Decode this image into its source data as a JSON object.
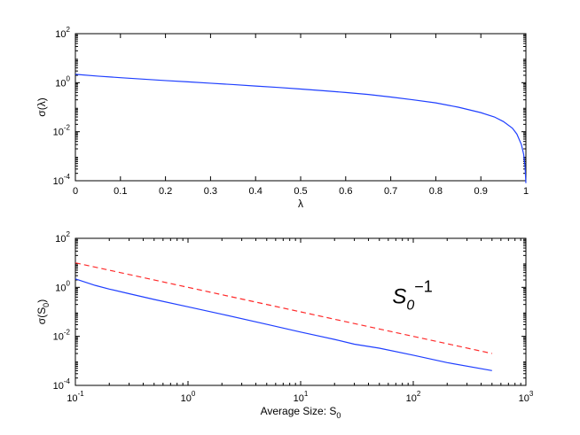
{
  "colors": {
    "solid": "#1f3fff",
    "dashed": "#ff2a2a",
    "axis": "#000000",
    "background": "#ffffff"
  },
  "chart_data": [
    {
      "type": "line",
      "xscale": "linear",
      "yscale": "log",
      "xlim": [
        0,
        1
      ],
      "ylim": [
        0.0001,
        100
      ],
      "xlabel": "λ",
      "ylabel": "σ(λ)",
      "xticks": [
        0,
        0.1,
        0.2,
        0.3,
        0.4,
        0.5,
        0.6,
        0.7,
        0.8,
        0.9,
        1
      ],
      "xtick_labels": [
        "0",
        "0.1",
        "0.2",
        "0.3",
        "0.4",
        "0.5",
        "0.6",
        "0.7",
        "0.8",
        "0.9",
        "1"
      ],
      "yticks": [
        {
          "base": "10",
          "exp": "-4"
        },
        {
          "base": "10",
          "exp": "-2"
        },
        {
          "base": "10",
          "exp": "0"
        },
        {
          "base": "10",
          "exp": "2"
        }
      ],
      "grid": false,
      "series": [
        {
          "style": "solid",
          "color": "#1f3fff",
          "x": [
            0,
            0.05,
            0.1,
            0.15,
            0.2,
            0.25,
            0.3,
            0.35,
            0.4,
            0.45,
            0.5,
            0.55,
            0.6,
            0.65,
            0.7,
            0.75,
            0.8,
            0.85,
            0.9,
            0.93,
            0.95,
            0.97,
            0.98,
            0.99,
            0.995,
            0.998,
            1
          ],
          "y": [
            2.2,
            1.85,
            1.6,
            1.4,
            1.22,
            1.08,
            0.95,
            0.84,
            0.73,
            0.64,
            0.55,
            0.47,
            0.4,
            0.33,
            0.26,
            0.2,
            0.15,
            0.1,
            0.06,
            0.04,
            0.026,
            0.014,
            0.008,
            0.003,
            0.0012,
            0.0004,
            8e-05
          ]
        }
      ]
    },
    {
      "type": "line",
      "xscale": "log",
      "yscale": "log",
      "xlim": [
        0.1,
        1000
      ],
      "ylim": [
        0.0001,
        100
      ],
      "xlabel": {
        "text": "Average Size: S",
        "sub": "0"
      },
      "ylabel": {
        "text": "σ(S",
        "sub": "0",
        "end": ")"
      },
      "xticks": [
        {
          "base": "10",
          "exp": "-1"
        },
        {
          "base": "10",
          "exp": "0"
        },
        {
          "base": "10",
          "exp": "1"
        },
        {
          "base": "10",
          "exp": "2"
        },
        {
          "base": "10",
          "exp": "3"
        }
      ],
      "yticks": [
        {
          "base": "10",
          "exp": "-4"
        },
        {
          "base": "10",
          "exp": "-2"
        },
        {
          "base": "10",
          "exp": "0"
        },
        {
          "base": "10",
          "exp": "2"
        }
      ],
      "grid": false,
      "annotations": [
        {
          "text": "S",
          "sub": "0",
          "sup": "−1",
          "x": 150,
          "y": 0.5
        }
      ],
      "series": [
        {
          "style": "solid",
          "color": "#1f3fff",
          "x": [
            0.1,
            0.15,
            0.2,
            0.3,
            0.5,
            1,
            2,
            5,
            10,
            20,
            30,
            50,
            100,
            200,
            500
          ],
          "y": [
            2.2,
            1.2,
            0.85,
            0.55,
            0.32,
            0.16,
            0.08,
            0.031,
            0.015,
            0.0075,
            0.0048,
            0.0033,
            0.0017,
            0.00085,
            0.0004
          ]
        },
        {
          "style": "dashed",
          "color": "#ff2a2a",
          "x": [
            0.1,
            1,
            10,
            100,
            500
          ],
          "y": [
            10,
            1,
            0.1,
            0.01,
            0.002
          ]
        }
      ]
    }
  ]
}
